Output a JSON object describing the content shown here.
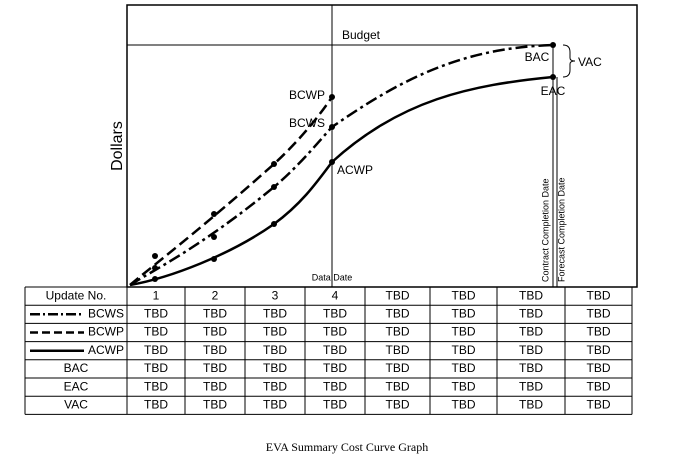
{
  "graph": {
    "y_axis_label": "Dollars",
    "labels": {
      "budget": "Budget",
      "bac": "BAC",
      "vac": "VAC",
      "eac": "EAC",
      "bcwp": "BCWP",
      "bcws": "BCWS",
      "acwp": "ACWP",
      "data_date": "Data Date",
      "contract_completion": "Contract Completion Date",
      "forecast_completion": "Forecast Completion Date"
    }
  },
  "table": {
    "header": [
      "Update No.",
      "1",
      "2",
      "3",
      "4",
      "TBD",
      "TBD",
      "TBD",
      "TBD"
    ],
    "rows": [
      [
        "BCWS",
        "TBD",
        "TBD",
        "TBD",
        "TBD",
        "TBD",
        "TBD",
        "TBD",
        "TBD"
      ],
      [
        "BCWP",
        "TBD",
        "TBD",
        "TBD",
        "TBD",
        "TBD",
        "TBD",
        "TBD",
        "TBD"
      ],
      [
        "ACWP",
        "TBD",
        "TBD",
        "TBD",
        "TBD",
        "TBD",
        "TBD",
        "TBD",
        "TBD"
      ],
      [
        "BAC",
        "TBD",
        "TBD",
        "TBD",
        "TBD",
        "TBD",
        "TBD",
        "TBD",
        "TBD"
      ],
      [
        "EAC",
        "TBD",
        "TBD",
        "TBD",
        "TBD",
        "TBD",
        "TBD",
        "TBD",
        "TBD"
      ],
      [
        "VAC",
        "TBD",
        "TBD",
        "TBD",
        "TBD",
        "TBD",
        "TBD",
        "TBD",
        "TBD"
      ]
    ]
  },
  "caption": "EVA Summary Cost Curve Graph"
}
